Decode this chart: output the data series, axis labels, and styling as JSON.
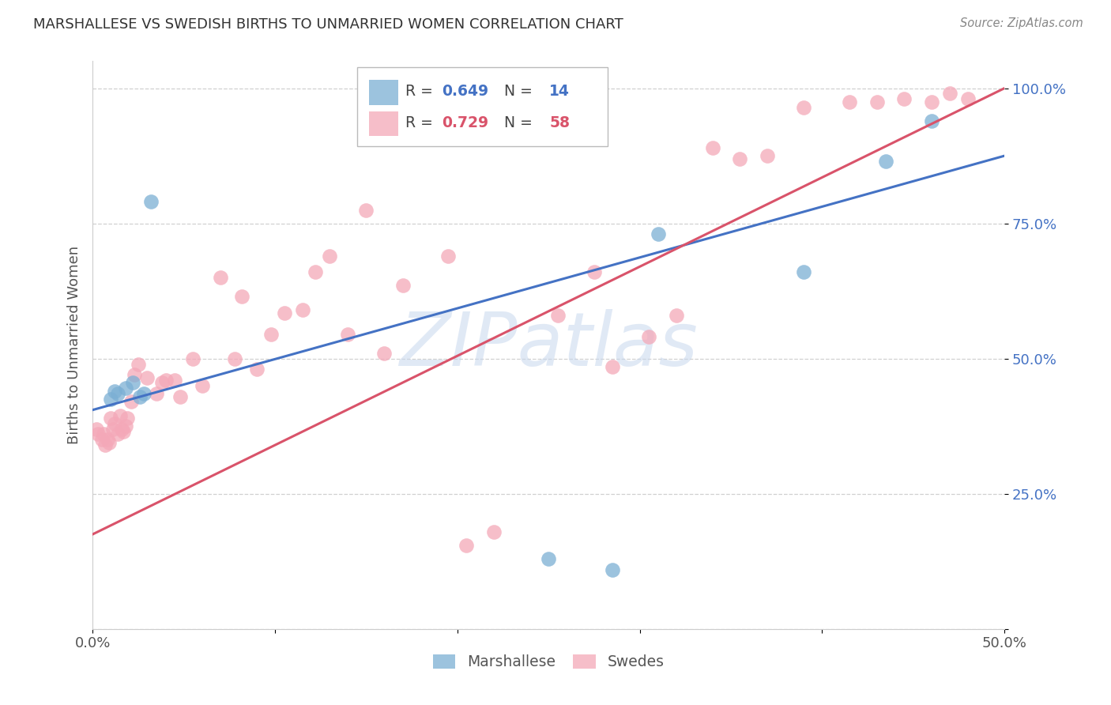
{
  "title": "MARSHALLESE VS SWEDISH BIRTHS TO UNMARRIED WOMEN CORRELATION CHART",
  "source": "Source: ZipAtlas.com",
  "ylabel": "Births to Unmarried Women",
  "xlim": [
    0.0,
    0.5
  ],
  "ylim": [
    0.0,
    1.05
  ],
  "xticks": [
    0.0,
    0.1,
    0.2,
    0.3,
    0.4,
    0.5
  ],
  "xticklabels": [
    "0.0%",
    "",
    "",
    "",
    "",
    "50.0%"
  ],
  "yticks": [
    0.0,
    0.25,
    0.5,
    0.75,
    1.0
  ],
  "yticklabels": [
    "",
    "25.0%",
    "50.0%",
    "75.0%",
    "100.0%"
  ],
  "blue_R": "0.649",
  "blue_N": "14",
  "pink_R": "0.729",
  "pink_N": "58",
  "blue_color": "#7bafd4",
  "pink_color": "#f4a8b8",
  "blue_line_color": "#4472c4",
  "pink_line_color": "#d9536a",
  "watermark": "ZIPatlas",
  "blue_line_x0": 0.0,
  "blue_line_y0": 0.405,
  "blue_line_x1": 0.5,
  "blue_line_y1": 0.875,
  "pink_line_x0": 0.0,
  "pink_line_y0": 0.175,
  "pink_line_x1": 0.5,
  "pink_line_y1": 1.0,
  "blue_points_x": [
    0.01,
    0.012,
    0.014,
    0.018,
    0.022,
    0.026,
    0.032,
    0.028,
    0.25,
    0.285,
    0.31,
    0.39,
    0.435,
    0.46
  ],
  "blue_points_y": [
    0.425,
    0.44,
    0.435,
    0.445,
    0.455,
    0.43,
    0.79,
    0.435,
    0.13,
    0.11,
    0.73,
    0.66,
    0.865,
    0.94
  ],
  "pink_points_x": [
    0.002,
    0.003,
    0.005,
    0.006,
    0.007,
    0.008,
    0.009,
    0.01,
    0.011,
    0.012,
    0.014,
    0.015,
    0.016,
    0.017,
    0.018,
    0.019,
    0.021,
    0.023,
    0.025,
    0.03,
    0.035,
    0.038,
    0.04,
    0.045,
    0.048,
    0.055,
    0.06,
    0.07,
    0.078,
    0.082,
    0.09,
    0.098,
    0.105,
    0.115,
    0.122,
    0.13,
    0.14,
    0.15,
    0.16,
    0.17,
    0.195,
    0.205,
    0.22,
    0.255,
    0.275,
    0.285,
    0.305,
    0.32,
    0.34,
    0.355,
    0.37,
    0.39,
    0.415,
    0.43,
    0.445,
    0.46,
    0.47,
    0.48
  ],
  "pink_points_y": [
    0.37,
    0.36,
    0.35,
    0.36,
    0.34,
    0.35,
    0.345,
    0.39,
    0.37,
    0.38,
    0.36,
    0.395,
    0.37,
    0.365,
    0.375,
    0.39,
    0.42,
    0.47,
    0.49,
    0.465,
    0.435,
    0.455,
    0.46,
    0.46,
    0.43,
    0.5,
    0.45,
    0.65,
    0.5,
    0.615,
    0.48,
    0.545,
    0.585,
    0.59,
    0.66,
    0.69,
    0.545,
    0.775,
    0.51,
    0.635,
    0.69,
    0.155,
    0.18,
    0.58,
    0.66,
    0.485,
    0.54,
    0.58,
    0.89,
    0.87,
    0.875,
    0.965,
    0.975,
    0.975,
    0.98,
    0.975,
    0.99,
    0.98
  ]
}
